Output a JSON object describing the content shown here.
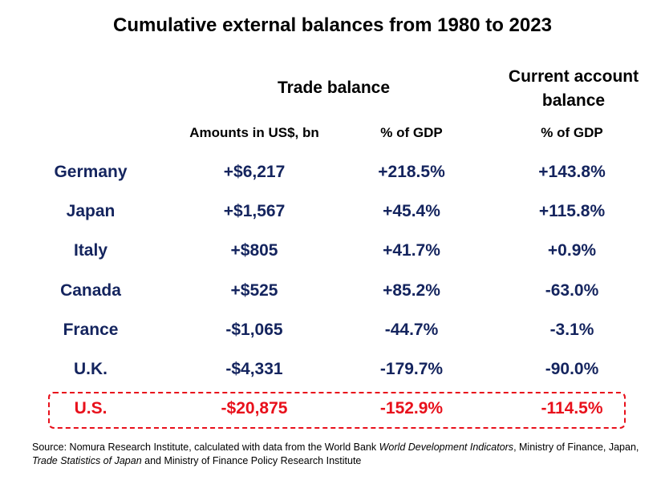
{
  "chart_data": {
    "type": "table",
    "title": "Cumulative external balances from 1980 to 2023",
    "column_groups": [
      {
        "label": "Trade balance"
      },
      {
        "label_line1": "Current account",
        "label_line2": "balance"
      }
    ],
    "columns": [
      "Amounts in US$, bn",
      "% of GDP",
      "% of GDP"
    ],
    "rows": [
      {
        "country": "Germany",
        "trade_amount": "+$6,217",
        "trade_pct": "+218.5%",
        "ca_pct": "+143.8%"
      },
      {
        "country": "Japan",
        "trade_amount": "+$1,567",
        "trade_pct": "+45.4%",
        "ca_pct": "+115.8%"
      },
      {
        "country": "Italy",
        "trade_amount": "+$805",
        "trade_pct": "+41.7%",
        "ca_pct": "+0.9%"
      },
      {
        "country": "Canada",
        "trade_amount": "+$525",
        "trade_pct": "+85.2%",
        "ca_pct": "-63.0%"
      },
      {
        "country": "France",
        "trade_amount": "-$1,065",
        "trade_pct": "-44.7%",
        "ca_pct": "-3.1%"
      },
      {
        "country": "U.K.",
        "trade_amount": "-$4,331",
        "trade_pct": "-179.7%",
        "ca_pct": "-90.0%"
      },
      {
        "country": "U.S.",
        "trade_amount": "-$20,875",
        "trade_pct": "-152.9%",
        "ca_pct": "-114.5%"
      }
    ],
    "highlighted_row": "U.S."
  },
  "source": {
    "part1": "Source: Nomura Research Institute, calculated with data from the World Bank ",
    "italic1": "World Development Indicators",
    "part2": ", Ministry of Finance, Japan, ",
    "italic2": "Trade Statistics of Japan",
    "part3": " and Ministry of Finance Policy Research Institute"
  },
  "colors": {
    "row_text": "#14245e",
    "highlight": "#e8101b"
  }
}
